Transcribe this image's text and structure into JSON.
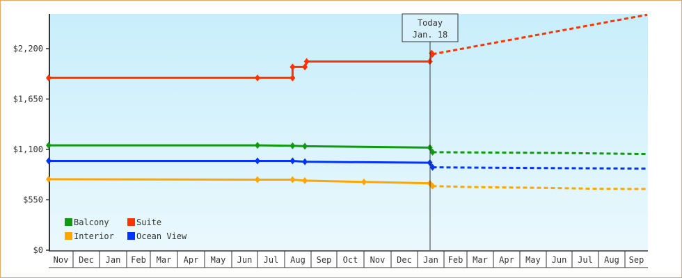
{
  "colors": {
    "frame_border": "#e8a862",
    "plot_bg_top": "#c8eefb",
    "plot_bg_bottom": "#eaf8fd",
    "axis": "#333333",
    "balcony": "#119911",
    "suite": "#ff3300",
    "interior": "#ffa500",
    "ocean_view": "#0033ff"
  },
  "today_marker": {
    "line1": "Today",
    "line2": "Jan. 18"
  },
  "legend": [
    {
      "label": "Balcony",
      "color": "#119911"
    },
    {
      "label": "Suite",
      "color": "#ff3300"
    },
    {
      "label": "Interior",
      "color": "#ffa500"
    },
    {
      "label": "Ocean View",
      "color": "#0033ff"
    }
  ],
  "chart_data": {
    "type": "line",
    "title": "",
    "xlabel": "",
    "ylabel": "",
    "ylim": [
      0,
      2580
    ],
    "y_ticks": [
      {
        "value": 0,
        "label": "$0"
      },
      {
        "value": 550,
        "label": "$550"
      },
      {
        "value": 1100,
        "label": "$1,100"
      },
      {
        "value": 1650,
        "label": "$1,650"
      },
      {
        "value": 2200,
        "label": "$2,200"
      }
    ],
    "x_ticks": [
      "Nov",
      "Dec",
      "Jan",
      "Feb",
      "Mar",
      "Apr",
      "May",
      "Jun",
      "Jul",
      "Aug",
      "Sep",
      "Oct",
      "Nov",
      "Dec",
      "Jan",
      "Feb",
      "Mar",
      "Apr",
      "May",
      "Jun",
      "Jul",
      "Aug",
      "Sep"
    ],
    "grid": false,
    "legend_position": "lower-left inside",
    "today_label": "Today Jan. 18",
    "series": [
      {
        "name": "Suite",
        "historical": [
          {
            "x": "Nov 1",
            "y": 1880
          },
          {
            "x": "Jul 1",
            "y": 1880
          },
          {
            "x": "Aug 10",
            "y": 1880
          },
          {
            "x": "Aug 10",
            "y": 2000
          },
          {
            "x": "Aug 24",
            "y": 2000
          },
          {
            "x": "Aug 26",
            "y": 2060
          },
          {
            "x": "Jan 15",
            "y": 2060
          },
          {
            "x": "Jan 17",
            "y": 2150
          },
          {
            "x": "Jan 18",
            "y": 2140
          }
        ],
        "forecast": [
          {
            "x": "Jan 18",
            "y": 2140
          },
          {
            "x": "Sep 30",
            "y": 2570
          }
        ]
      },
      {
        "name": "Balcony",
        "historical": [
          {
            "x": "Nov 1",
            "y": 1145
          },
          {
            "x": "Jul 1",
            "y": 1145
          },
          {
            "x": "Aug 10",
            "y": 1140
          },
          {
            "x": "Aug 24",
            "y": 1135
          },
          {
            "x": "Jan 15",
            "y": 1120
          },
          {
            "x": "Jan 18",
            "y": 1070
          }
        ],
        "forecast": [
          {
            "x": "Jan 18",
            "y": 1070
          },
          {
            "x": "Jul 1",
            "y": 1060
          },
          {
            "x": "Sep 30",
            "y": 1050
          }
        ]
      },
      {
        "name": "Ocean View",
        "historical": [
          {
            "x": "Nov 1",
            "y": 975
          },
          {
            "x": "Jul 1",
            "y": 975
          },
          {
            "x": "Aug 10",
            "y": 975
          },
          {
            "x": "Aug 24",
            "y": 965
          },
          {
            "x": "Jan 15",
            "y": 955
          },
          {
            "x": "Jan 18",
            "y": 905
          }
        ],
        "forecast": [
          {
            "x": "Jan 18",
            "y": 905
          },
          {
            "x": "Jul 1",
            "y": 895
          },
          {
            "x": "Sep 30",
            "y": 890
          }
        ]
      },
      {
        "name": "Interior",
        "historical": [
          {
            "x": "Nov 1",
            "y": 775
          },
          {
            "x": "Jul 1",
            "y": 770
          },
          {
            "x": "Aug 10",
            "y": 770
          },
          {
            "x": "Aug 24",
            "y": 760
          },
          {
            "x": "Nov 1",
            "y": 745
          },
          {
            "x": "Jan 15",
            "y": 730
          },
          {
            "x": "Jan 18",
            "y": 700
          }
        ],
        "forecast": [
          {
            "x": "Jan 18",
            "y": 700
          },
          {
            "x": "Mar 1",
            "y": 690
          },
          {
            "x": "Jun 1",
            "y": 680
          },
          {
            "x": "Aug 1",
            "y": 670
          },
          {
            "x": "Sep 30",
            "y": 668
          }
        ]
      }
    ]
  }
}
